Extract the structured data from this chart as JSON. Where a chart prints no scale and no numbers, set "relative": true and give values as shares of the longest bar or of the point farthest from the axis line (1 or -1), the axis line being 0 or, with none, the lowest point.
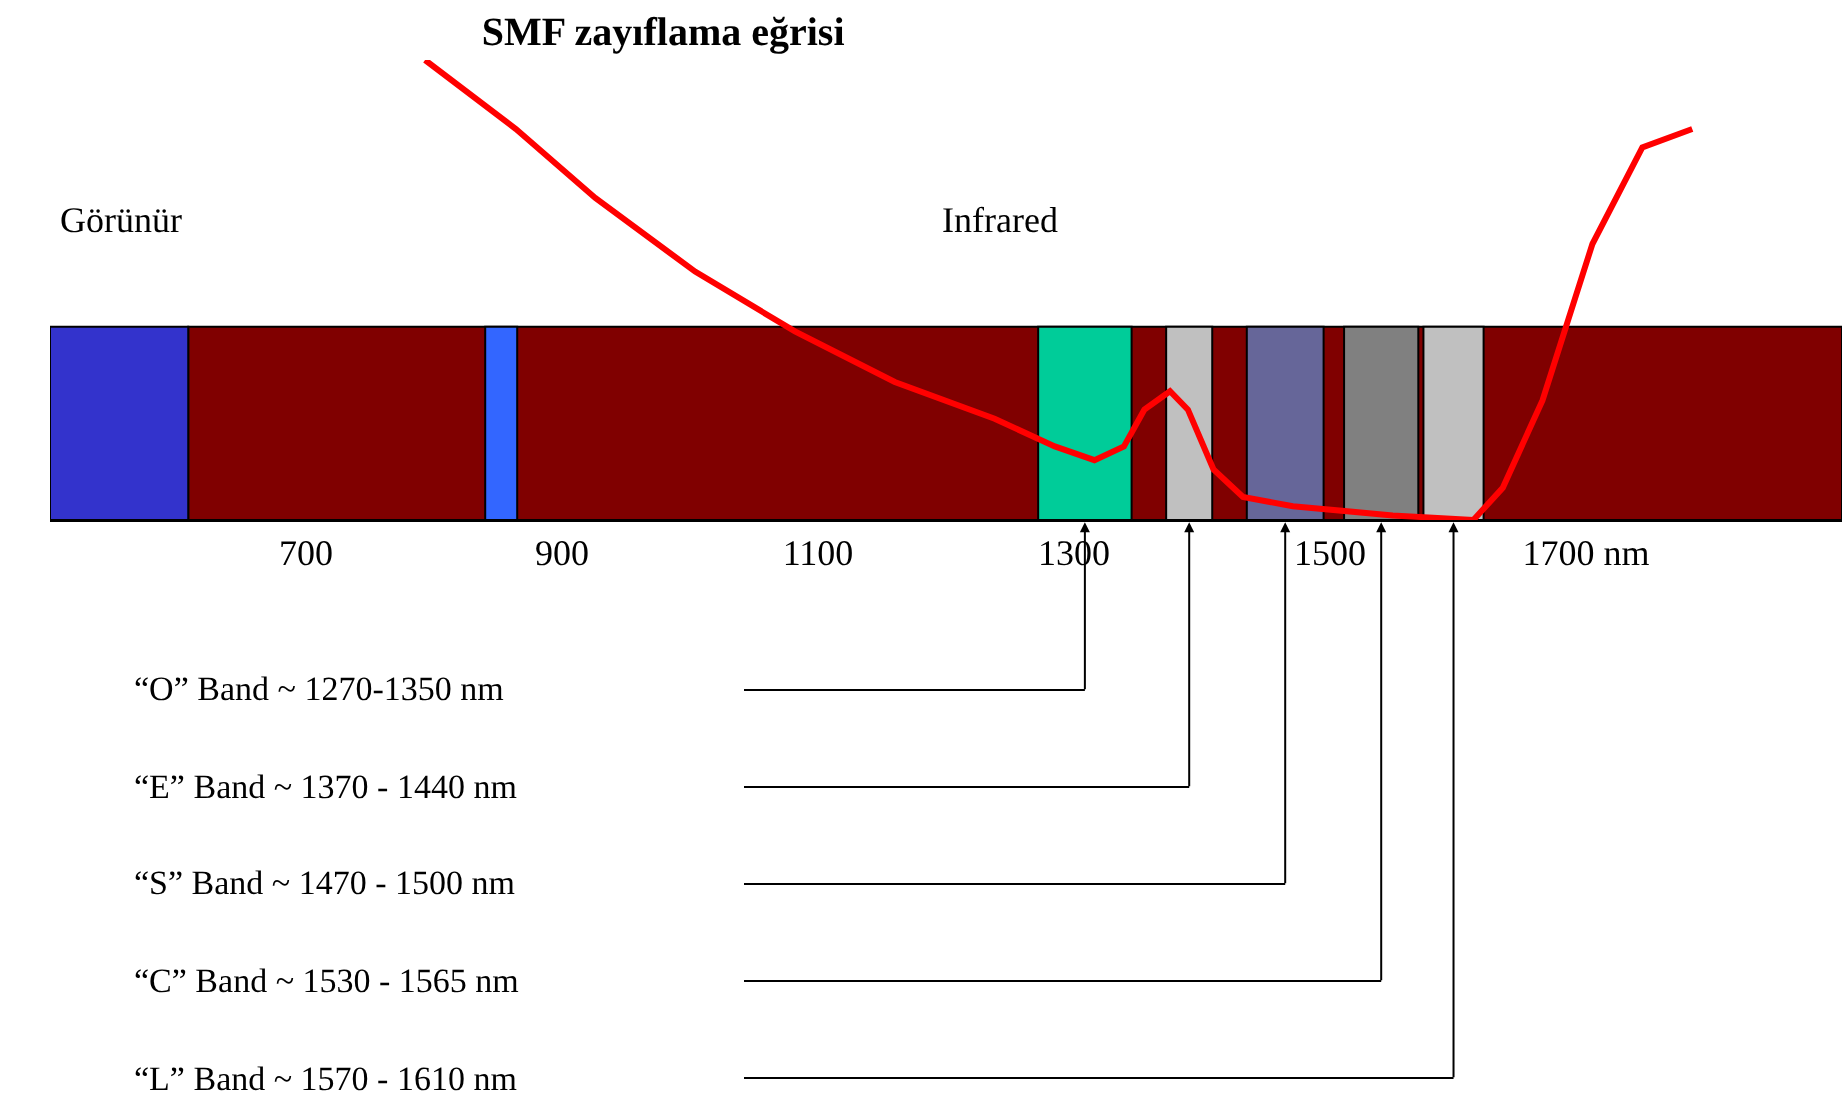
{
  "chart_data": {
    "type": "line",
    "title": "SMF zayıflama eğrisi",
    "relative": true,
    "x": [
      793,
      864,
      926,
      1004,
      1082,
      1160,
      1238,
      1285,
      1316,
      1339,
      1355,
      1375,
      1389,
      1409,
      1432,
      1471,
      1549,
      1612,
      1635,
      1666,
      1705,
      1744,
      1783
    ],
    "series": [
      {
        "color": "#ff0000",
        "values": [
          1.0,
          0.85,
          0.7,
          0.54,
          0.41,
          0.3,
          0.22,
          0.16,
          0.13,
          0.16,
          0.24,
          0.28,
          0.24,
          0.11,
          0.05,
          0.03,
          0.01,
          0.0,
          0.07,
          0.26,
          0.6,
          0.81,
          0.85
        ]
      }
    ],
    "xlim": [
      500,
      1900
    ],
    "xticks": [
      700,
      900,
      1100,
      1300,
      1500,
      {
        "value": 1700,
        "label": "1700 nm"
      }
    ],
    "marker": "none",
    "line_style": "solid",
    "grid": false,
    "tick_labels": "x",
    "bands": [
      {
        "axis": "x",
        "from": 608,
        "to": 1900,
        "color": "#800000"
      },
      {
        "axis": "x",
        "from": 500,
        "to": 608,
        "color": "#3333cc"
      },
      {
        "axis": "x",
        "from": 840,
        "to": 865,
        "color": "#3366ff"
      },
      {
        "axis": "x",
        "from": 1272,
        "to": 1345,
        "color": "#00cc99"
      },
      {
        "axis": "x",
        "from": 1372,
        "to": 1408,
        "color": "#c0c0c0"
      },
      {
        "axis": "x",
        "from": 1435,
        "to": 1495,
        "color": "#666699"
      },
      {
        "axis": "x",
        "from": 1511,
        "to": 1569,
        "color": "#808080"
      },
      {
        "axis": "x",
        "from": 1573,
        "to": 1620,
        "color": "#c0c0c0"
      }
    ],
    "annotations": [
      "Görünür",
      "Infrared",
      "“O” Band ~ 1270-1350 nm",
      "“E” Band ~ 1370 - 1440 nm",
      "“S” Band ~ 1470 - 1500 nm",
      "“C” Band ~ 1530 - 1565 nm",
      "“L” Band ~ 1570 - 1610 nm"
    ]
  }
}
